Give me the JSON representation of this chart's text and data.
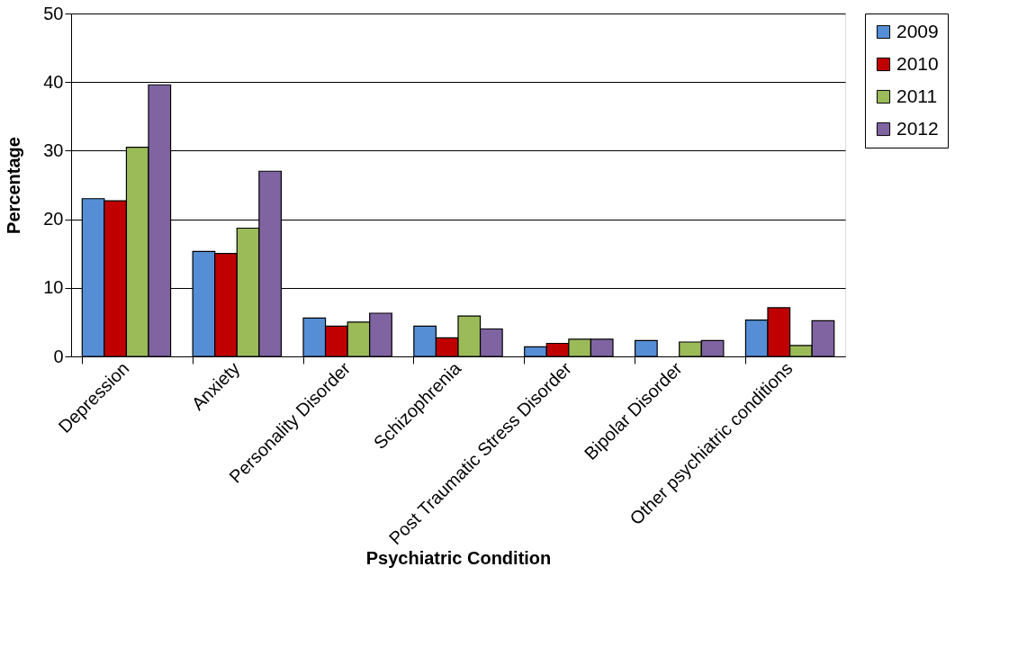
{
  "chart_data": {
    "type": "bar",
    "xlabel": "Psychiatric Condition",
    "ylabel": "Percentage",
    "categories": [
      "Depression",
      "Anxiety",
      "Personality Disorder",
      "Schizophrenia",
      "Post Traumatic Stress Disorder",
      "Bipolar Disorder",
      "Other psychiatric conditions"
    ],
    "series": [
      {
        "name": "2009",
        "color": "#558ed5",
        "values": [
          23.0,
          15.3,
          5.6,
          4.4,
          1.4,
          2.3,
          5.3
        ]
      },
      {
        "name": "2010",
        "color": "#c00000",
        "values": [
          22.7,
          15.0,
          4.4,
          2.7,
          1.9,
          null,
          7.1
        ]
      },
      {
        "name": "2011",
        "color": "#9bbb59",
        "values": [
          30.5,
          18.7,
          5.0,
          5.9,
          2.5,
          2.1,
          1.6
        ]
      },
      {
        "name": "2012",
        "color": "#8064a2",
        "values": [
          39.6,
          27.0,
          6.3,
          4.0,
          2.5,
          2.3,
          5.2
        ]
      }
    ],
    "ylim": [
      0,
      50
    ],
    "yticks": [
      0,
      10,
      20,
      30,
      40,
      50
    ],
    "grid": "y",
    "legend": "right"
  }
}
